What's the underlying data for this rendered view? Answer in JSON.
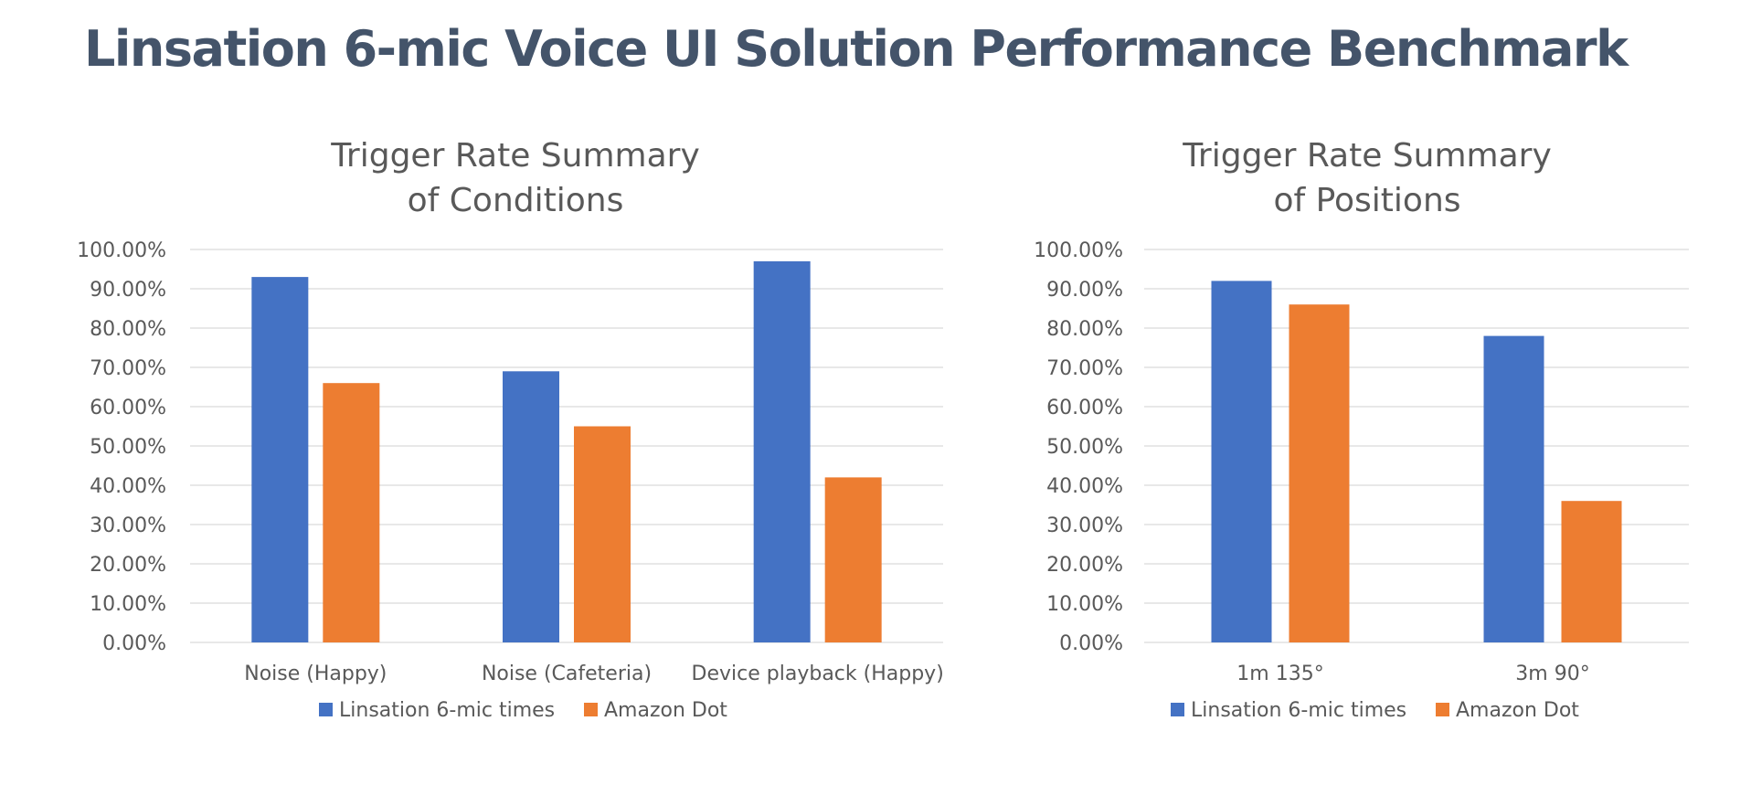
{
  "page": {
    "title": "Linsation 6-mic Voice UI Solution Performance Benchmark"
  },
  "colors": {
    "series1": "#4472c4",
    "series2": "#ed7d31",
    "title": "#44546a",
    "text": "#595959",
    "grid": "#d9d9d9"
  },
  "chart_data": [
    {
      "type": "bar",
      "title_lines": [
        "Trigger Rate Summary",
        "of Conditions"
      ],
      "categories": [
        "Noise (Happy)",
        "Noise (Cafeteria)",
        "Device playback (Happy)"
      ],
      "series": [
        {
          "name": "Linsation 6-mic times",
          "values": [
            93,
            69,
            97
          ]
        },
        {
          "name": "Amazon Dot",
          "values": [
            66,
            55,
            42
          ]
        }
      ],
      "ylim": [
        0,
        100
      ],
      "yticks": [
        "0.00%",
        "10.00%",
        "20.00%",
        "30.00%",
        "40.00%",
        "50.00%",
        "60.00%",
        "70.00%",
        "80.00%",
        "90.00%",
        "100.00%"
      ],
      "grid": true,
      "legend": "bottom"
    },
    {
      "type": "bar",
      "title_lines": [
        "Trigger Rate Summary",
        "of Positions"
      ],
      "categories": [
        "1m 135°",
        "3m 90°"
      ],
      "series": [
        {
          "name": "Linsation 6-mic times",
          "values": [
            92,
            78
          ]
        },
        {
          "name": "Amazon Dot",
          "values": [
            86,
            36
          ]
        }
      ],
      "ylim": [
        0,
        100
      ],
      "yticks": [
        "0.00%",
        "10.00%",
        "20.00%",
        "30.00%",
        "40.00%",
        "50.00%",
        "60.00%",
        "70.00%",
        "80.00%",
        "90.00%",
        "100.00%"
      ],
      "grid": true,
      "legend": "bottom"
    }
  ]
}
